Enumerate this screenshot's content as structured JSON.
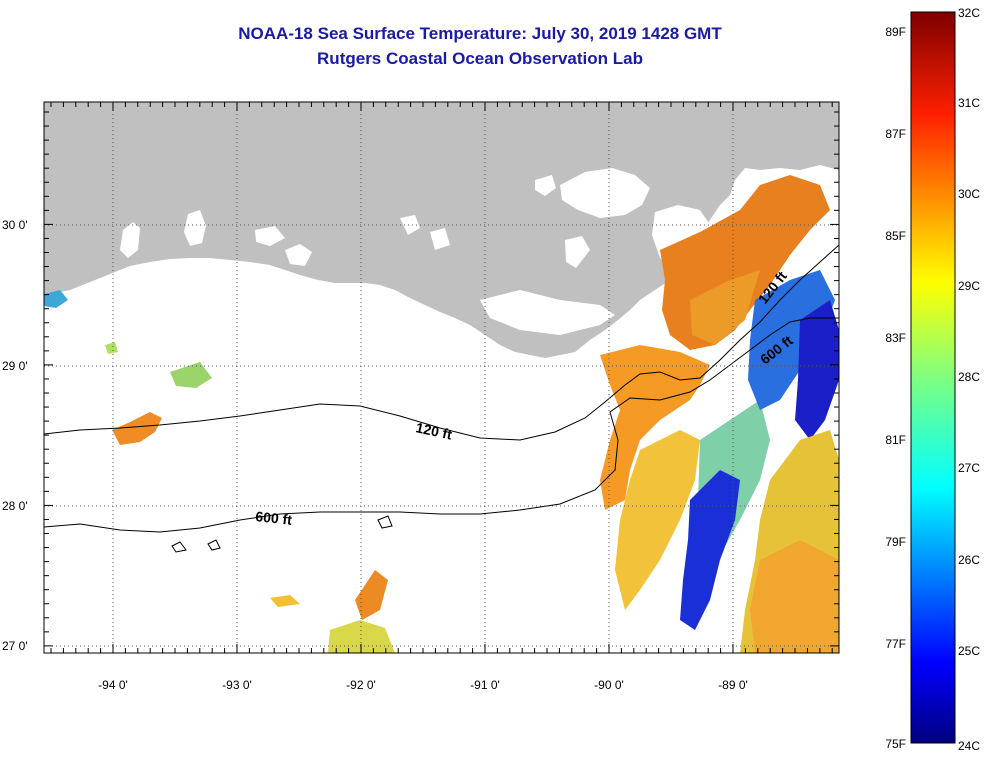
{
  "title_line1": "NOAA-18 Sea Surface Temperature:  July 30, 2019 1428 GMT",
  "title_line2": "Rutgers Coastal Ocean Observation Lab",
  "lon_ticks": [
    "-94 0'",
    "-93 0'",
    "-92 0'",
    "-91 0'",
    "-90 0'",
    "-89 0'"
  ],
  "lat_ticks": [
    "30 0'",
    "29 0'",
    "28 0'",
    "27 0'"
  ],
  "contours": [
    {
      "label": "120 ft"
    },
    {
      "label": "600 ft"
    },
    {
      "label": "120 ft"
    },
    {
      "label": "600 ft"
    }
  ],
  "colorbar": {
    "fahrenheit": [
      "89F",
      "87F",
      "85F",
      "83F",
      "81F",
      "79F",
      "77F",
      "75F"
    ],
    "celsius": [
      "32C",
      "31C",
      "30C",
      "29C",
      "28C",
      "27C",
      "26C",
      "25C",
      "24C"
    ]
  },
  "colors": {
    "land": "#c0c0c0",
    "title": "#1a1aa6",
    "grid": "#555555"
  }
}
